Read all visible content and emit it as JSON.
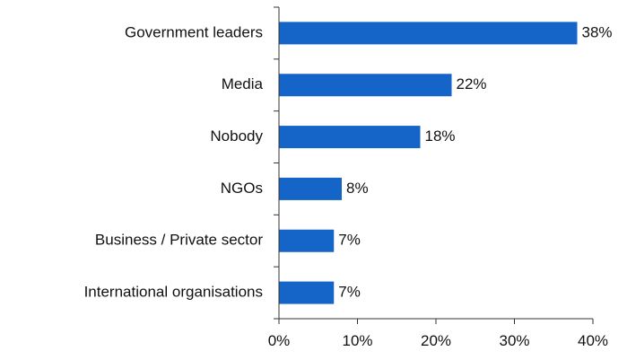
{
  "chart_data": {
    "type": "bar",
    "orientation": "horizontal",
    "title": "",
    "xlabel": "",
    "ylabel": "",
    "categories": [
      "Government leaders",
      "Media",
      "Nobody",
      "NGOs",
      "Business / Private sector",
      "International organisations"
    ],
    "values": [
      38,
      22,
      18,
      8,
      7,
      7
    ],
    "value_labels": [
      "38%",
      "22%",
      "18%",
      "8%",
      "7%",
      "7%"
    ],
    "xlim": [
      0,
      40
    ],
    "x_ticks": [
      0,
      10,
      20,
      30,
      40
    ],
    "x_tick_labels": [
      "0%",
      "10%",
      "20%",
      "30%",
      "40%"
    ],
    "grid": false,
    "legend": "none",
    "bar_color": "#1565C8"
  }
}
